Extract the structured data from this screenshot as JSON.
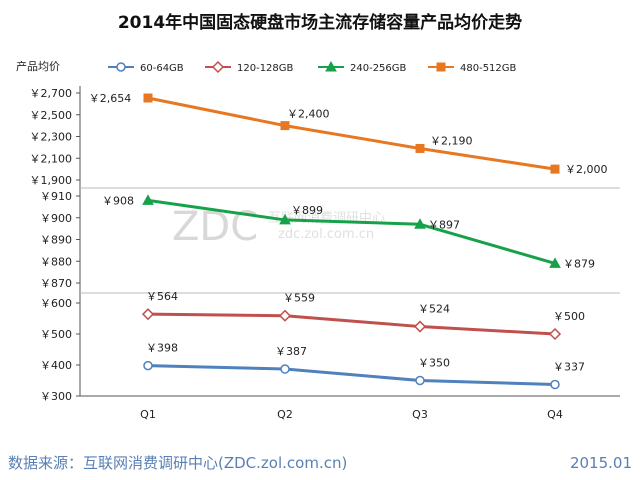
{
  "chart_data": {
    "type": "line",
    "title": "2014年中国固态硬盘市场主流存储容量产品均价走势",
    "ylabel": "产品均价",
    "xlabel": "",
    "categories": [
      "Q1",
      "Q2",
      "Q3",
      "Q4"
    ],
    "value_prefix": "￥",
    "series": [
      {
        "name": "60-64GB",
        "color": "#4f81bd",
        "marker": "circle",
        "values": [
          398,
          387,
          350,
          337
        ],
        "labels": [
          "￥398",
          "￥387",
          "￥350",
          "￥337"
        ]
      },
      {
        "name": "120-128GB",
        "color": "#c0504d",
        "marker": "diamond",
        "values": [
          564,
          559,
          524,
          500
        ],
        "labels": [
          "￥564",
          "￥559",
          "￥524",
          "￥500"
        ]
      },
      {
        "name": "240-256GB",
        "color": "#17a24a",
        "marker": "triangle",
        "values": [
          908,
          899,
          897,
          879
        ],
        "labels": [
          "￥908",
          "￥899",
          "￥897",
          "￥879"
        ]
      },
      {
        "name": "480-512GB",
        "color": "#e87722",
        "marker": "square",
        "values": [
          2654,
          2400,
          2190,
          2000
        ],
        "labels": [
          "￥2,654",
          "￥2,400",
          "￥2,190",
          "￥2,000"
        ]
      }
    ],
    "panels": [
      {
        "series": [
          3
        ],
        "ylim": [
          1900,
          2700
        ],
        "ticks": [
          1900,
          2100,
          2300,
          2500,
          2700
        ],
        "tick_labels": [
          "￥1,900",
          "￥2,100",
          "￥2,300",
          "￥2,500",
          "￥2,700"
        ]
      },
      {
        "series": [
          2
        ],
        "ylim": [
          870,
          910
        ],
        "ticks": [
          870,
          880,
          890,
          900,
          910
        ],
        "tick_labels": [
          "￥870",
          "￥880",
          "￥890",
          "￥900",
          "￥910"
        ]
      },
      {
        "series": [
          0,
          1
        ],
        "ylim": [
          300,
          600
        ],
        "ticks": [
          300,
          400,
          500,
          600
        ],
        "tick_labels": [
          "￥300",
          "￥400",
          "￥500",
          "￥600"
        ]
      }
    ],
    "legend_position": "top",
    "grid": false
  },
  "watermark": {
    "main": "ZDC",
    "sub": "互联网消费调研中心",
    "url": "zdc.zol.com.cn"
  },
  "footer": {
    "source": "数据来源：互联网消费调研中心(ZDC.zol.com.cn)",
    "date": "2015.01"
  }
}
